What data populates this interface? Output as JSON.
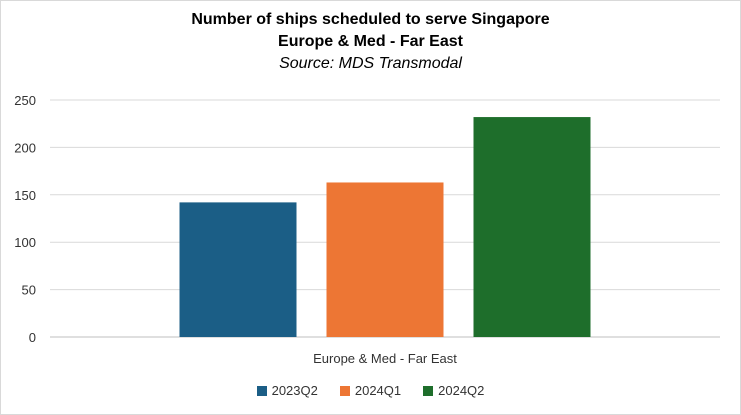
{
  "chart_data": {
    "type": "bar",
    "title": "Number of ships scheduled to serve Singapore",
    "subtitle": "Europe & Med - Far East",
    "source": "Source: MDS Transmodal",
    "categories": [
      "Europe & Med - Far East"
    ],
    "series": [
      {
        "name": "2023Q2",
        "values": [
          142
        ],
        "color": "#1b5e86"
      },
      {
        "name": "2024Q1",
        "values": [
          163
        ],
        "color": "#ed7634"
      },
      {
        "name": "2024Q2",
        "values": [
          232
        ],
        "color": "#1e6e2b"
      }
    ],
    "ylim": [
      0,
      250
    ],
    "yticks": [
      "0",
      "50",
      "100",
      "150",
      "200",
      "250"
    ],
    "grid": true,
    "legend": "bottom"
  }
}
